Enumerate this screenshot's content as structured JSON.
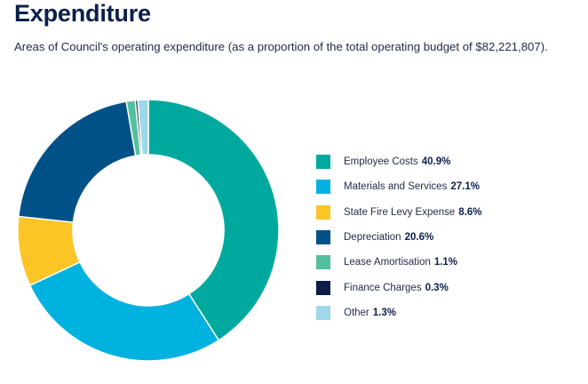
{
  "title": "Expenditure",
  "subtitle": "Areas of Council's operating expenditure (as a proportion of the total operating budget of $82,221,807).",
  "chart_data": {
    "type": "pie",
    "style": "donut",
    "start_at": "top",
    "direction": "clockwise",
    "legend_position": "right",
    "categories": [
      "Employee Costs",
      "Materials and Services",
      "State Fire Levy Expense",
      "Depreciation",
      "Lease Amortisation",
      "Finance Charges",
      "Other"
    ],
    "values": [
      40.9,
      27.1,
      8.6,
      20.6,
      1.1,
      0.3,
      1.3
    ],
    "value_labels": [
      "40.9%",
      "27.1%",
      "8.6%",
      "20.6%",
      "1.1%",
      "0.3%",
      "1.3%"
    ],
    "colors": [
      "#00A99D",
      "#00B2DF",
      "#FDC425",
      "#005187",
      "#52C09E",
      "#0B1C45",
      "#9ED9E8"
    ]
  }
}
